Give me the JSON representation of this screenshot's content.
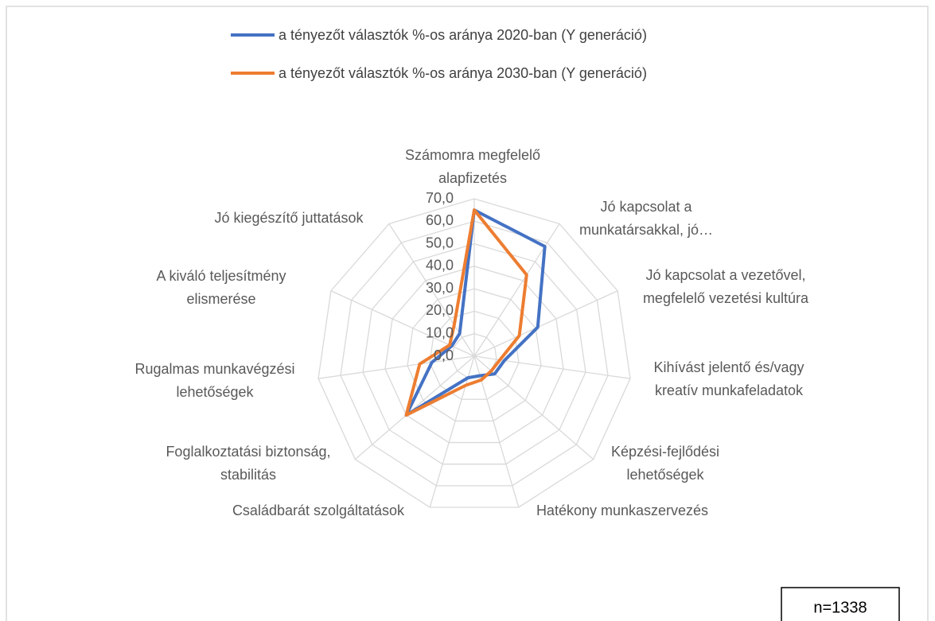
{
  "chart_data": {
    "type": "radar",
    "categories": [
      [
        "Számomra megfelelő",
        "alapfizetés"
      ],
      [
        "Jó kapcsolat a",
        "munkatársakkal, jó…"
      ],
      [
        "Jó kapcsolat a vezetővel,",
        "megfelelő vezetési kultúra"
      ],
      [
        "Kihívást jelentő és/vagy",
        "kreatív munkafeladatok"
      ],
      [
        "Képzési-fejlődési",
        "lehetőségek"
      ],
      [
        "Hatékony munkaszervezés"
      ],
      [
        "Családbarát szolgáltatások"
      ],
      [
        "Foglalkoztatási biztonság,",
        "stabilitás"
      ],
      [
        "Rugalmas munkavégzési",
        "lehetőségek"
      ],
      [
        "A kiváló teljesítmény",
        "elismerése"
      ],
      [
        "Jó kiegészítő juttatások"
      ]
    ],
    "series": [
      {
        "name": "a tényezőt választók %-os aránya 2020-ban (Y generáció)",
        "color": "#4472c4",
        "values": [
          65,
          58,
          31,
          13.5,
          12,
          9,
          10,
          40,
          19,
          11,
          12
        ]
      },
      {
        "name": "a tényezőt választók %-os aránya 2030-ban (Y generáció)",
        "color": "#ed7d31",
        "values": [
          65,
          43,
          22,
          11.5,
          10,
          11,
          13.5,
          40,
          24.5,
          12,
          16.5
        ]
      }
    ],
    "ylim": [
      0,
      70
    ],
    "yticks": [
      {
        "value": 0,
        "label": "0,0"
      },
      {
        "value": 10,
        "label": "10,0"
      },
      {
        "value": 20,
        "label": "20,0"
      },
      {
        "value": 30,
        "label": "30,0"
      },
      {
        "value": 40,
        "label": "40,0"
      },
      {
        "value": 50,
        "label": "50,0"
      },
      {
        "value": 60,
        "label": "60,0"
      },
      {
        "value": 70,
        "label": "70,0"
      }
    ],
    "grid": true,
    "legend": "top",
    "annotation": "n=1338"
  }
}
